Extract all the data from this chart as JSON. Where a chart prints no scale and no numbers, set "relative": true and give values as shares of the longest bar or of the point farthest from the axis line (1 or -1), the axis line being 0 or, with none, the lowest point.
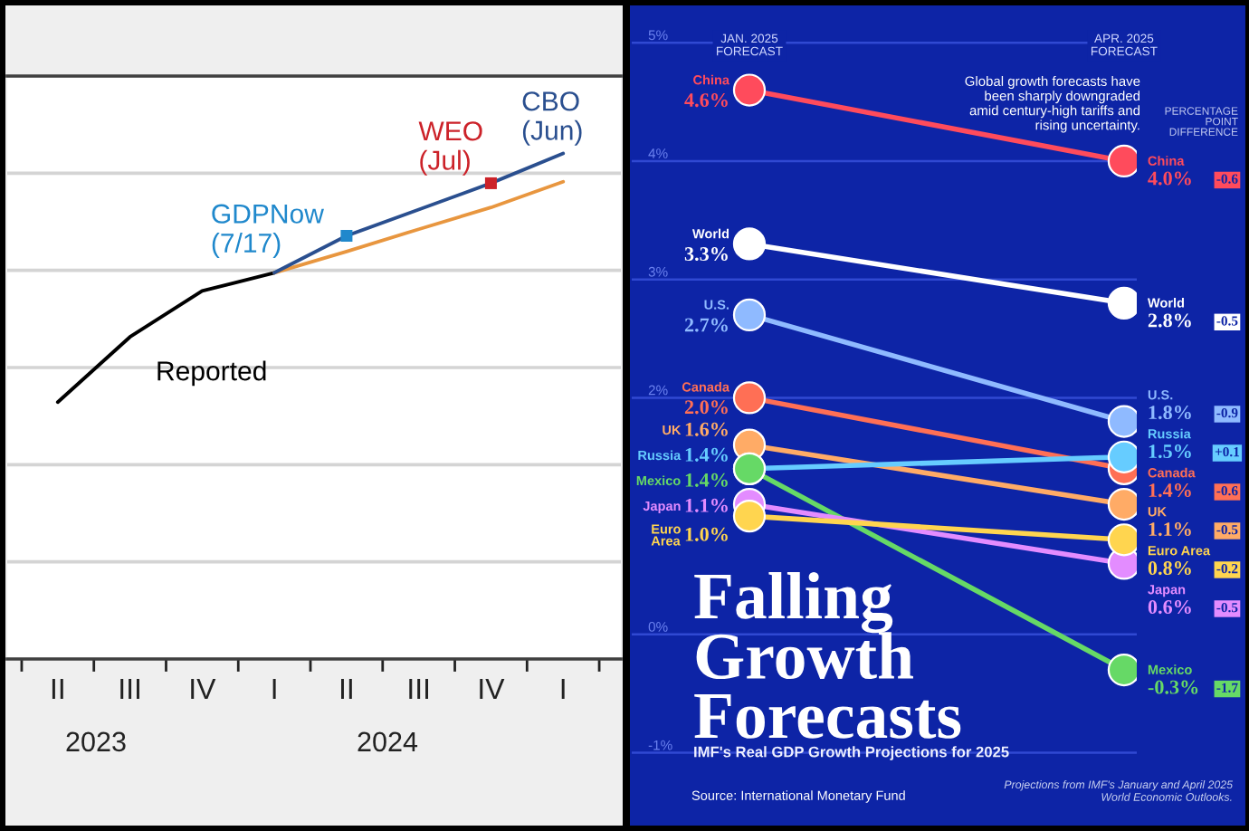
{
  "chart_data": [
    {
      "type": "line",
      "relative": true,
      "categories": [
        "II",
        "III",
        "IV",
        "I",
        "II",
        "III",
        "IV",
        "I"
      ],
      "grid": "y",
      "tick_labels": "x",
      "series": [
        {
          "name": "Reported",
          "color": "#000000",
          "values": [
            0.508,
            0.637,
            0.728,
            0.764,
            null,
            null,
            null,
            null
          ]
        },
        {
          "color": "#e8963f",
          "values": [
            null,
            null,
            null,
            0.764,
            0.806,
            0.85,
            0.893,
            0.944
          ]
        },
        {
          "name": "CBO\n(Jun)",
          "color": "#2a4f8f",
          "values": [
            null,
            null,
            null,
            0.764,
            0.837,
            0.889,
            0.941,
            1.0
          ]
        },
        {
          "name": "GDPNow\n(7/17)",
          "type": "scatter",
          "marker": "square",
          "color": "#1f88cc",
          "values": [
            null,
            null,
            null,
            null,
            0.837,
            null,
            null,
            null
          ]
        },
        {
          "name": "WEO\n(Jul)",
          "type": "scatter",
          "marker": "square",
          "color": "#cc2229",
          "values": [
            null,
            null,
            null,
            null,
            null,
            null,
            0.941,
            null
          ]
        }
      ],
      "annotations": [
        "2023",
        "2024"
      ]
    },
    {
      "type": "line",
      "title": "Falling\nGrowth\nForecasts",
      "subtitle": "IMF's Real GDP Growth Projections for 2025",
      "categories": [
        "JAN. 2025\nFORECAST",
        "APR. 2025\nFORECAST"
      ],
      "ylim": [
        -1.6,
        5.3
      ],
      "yticks": [
        {
          "value": -1,
          "label": "-1%"
        },
        {
          "value": 0,
          "label": "0%"
        },
        {
          "value": 2,
          "label": "2%"
        },
        {
          "value": 3,
          "label": "3%"
        },
        {
          "value": 4,
          "label": "4%"
        },
        {
          "value": 5,
          "label": "5%"
        }
      ],
      "grid": "y",
      "marker": "circle",
      "series": [
        {
          "name": "China",
          "color": "#ff4b5c",
          "values": [
            4.6,
            4.0
          ],
          "value_labels": [
            "4.6%",
            "4.0%"
          ]
        },
        {
          "name": "World",
          "color": "#ffffff",
          "values": [
            3.3,
            2.8
          ],
          "value_labels": [
            "3.3%",
            "2.8%"
          ]
        },
        {
          "name": "U.S.",
          "color": "#8fbaff",
          "values": [
            2.7,
            1.8
          ],
          "value_labels": [
            "2.7%",
            "1.8%"
          ]
        },
        {
          "name": "Canada",
          "color": "#ff6f55",
          "values": [
            2.0,
            1.4
          ],
          "value_labels": [
            "2.0%",
            "1.4%"
          ]
        },
        {
          "name": "UK",
          "color": "#ffab66",
          "values": [
            1.6,
            1.1
          ],
          "value_labels": [
            "1.6%",
            "1.1%"
          ]
        },
        {
          "name": "Russia",
          "color": "#66ccff",
          "values": [
            1.4,
            1.5
          ],
          "value_labels": [
            "1.4%",
            "1.5%"
          ]
        },
        {
          "name": "Mexico",
          "color": "#66d966",
          "values": [
            1.4,
            -0.3
          ],
          "value_labels": [
            "1.4%",
            "-0.3%"
          ]
        },
        {
          "name": "Japan",
          "color": "#e38cff",
          "values": [
            1.1,
            0.6
          ],
          "value_labels": [
            "1.1%",
            "0.6%"
          ]
        },
        {
          "name": "Euro Area",
          "color": "#ffd54f",
          "values": [
            1.0,
            0.8
          ],
          "value_labels": [
            "1.0%",
            "0.8%"
          ]
        }
      ],
      "annotations": [
        "Global growth forecasts have\nbeen sharply downgraded\namid century-high tariffs and\nrising uncertainty.",
        "PERCENTAGE\nPOINT\nDIFFERENCE",
        "Source: International Monetary Fund",
        "Projections from IMF's January and April 2025\nWorld Economic Outlooks.",
        "-0.6",
        "-0.5",
        "-0.9",
        "-0.6",
        "-0.5",
        "+0.1",
        "-1.7",
        "-0.5",
        "-0.2"
      ]
    }
  ]
}
